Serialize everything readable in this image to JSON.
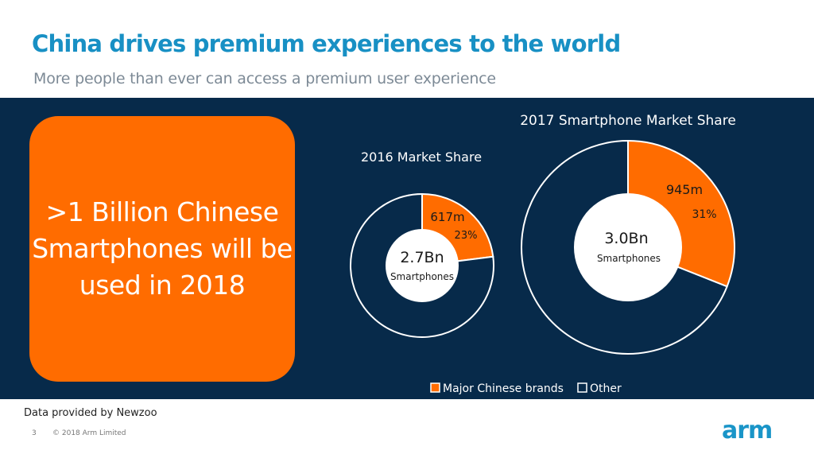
{
  "header": {
    "title": "China drives premium experiences to the world",
    "subtitle": "More people than ever can access a premium user experience"
  },
  "callout": {
    "text": ">1 Billion Chinese Smartphones will be used in 2018"
  },
  "colors": {
    "accent": "#ff6c00",
    "navy": "#072a4a",
    "title": "#1890c4",
    "other": "#072a4a"
  },
  "chart_data": [
    {
      "type": "pie",
      "title": "2016 Market Share",
      "center_value": "2.7Bn",
      "center_label": "Smartphones",
      "categories": [
        "Major Chinese brands",
        "Other"
      ],
      "values": [
        23,
        77
      ],
      "labels": {
        "units": "617m",
        "percent": "23%"
      }
    },
    {
      "type": "pie",
      "title": "2017 Smartphone Market Share",
      "center_value": "3.0Bn",
      "center_label": "Smartphones",
      "categories": [
        "Major Chinese brands",
        "Other"
      ],
      "values": [
        31,
        69
      ],
      "labels": {
        "units": "945m",
        "percent": "31%"
      }
    }
  ],
  "legend": {
    "items": [
      "Major Chinese brands",
      "Other"
    ],
    "placement": "bottom"
  },
  "footer": {
    "source": "Data provided by Newzoo",
    "page": "3",
    "copyright": "© 2018 Arm Limited",
    "logo": "arm"
  }
}
